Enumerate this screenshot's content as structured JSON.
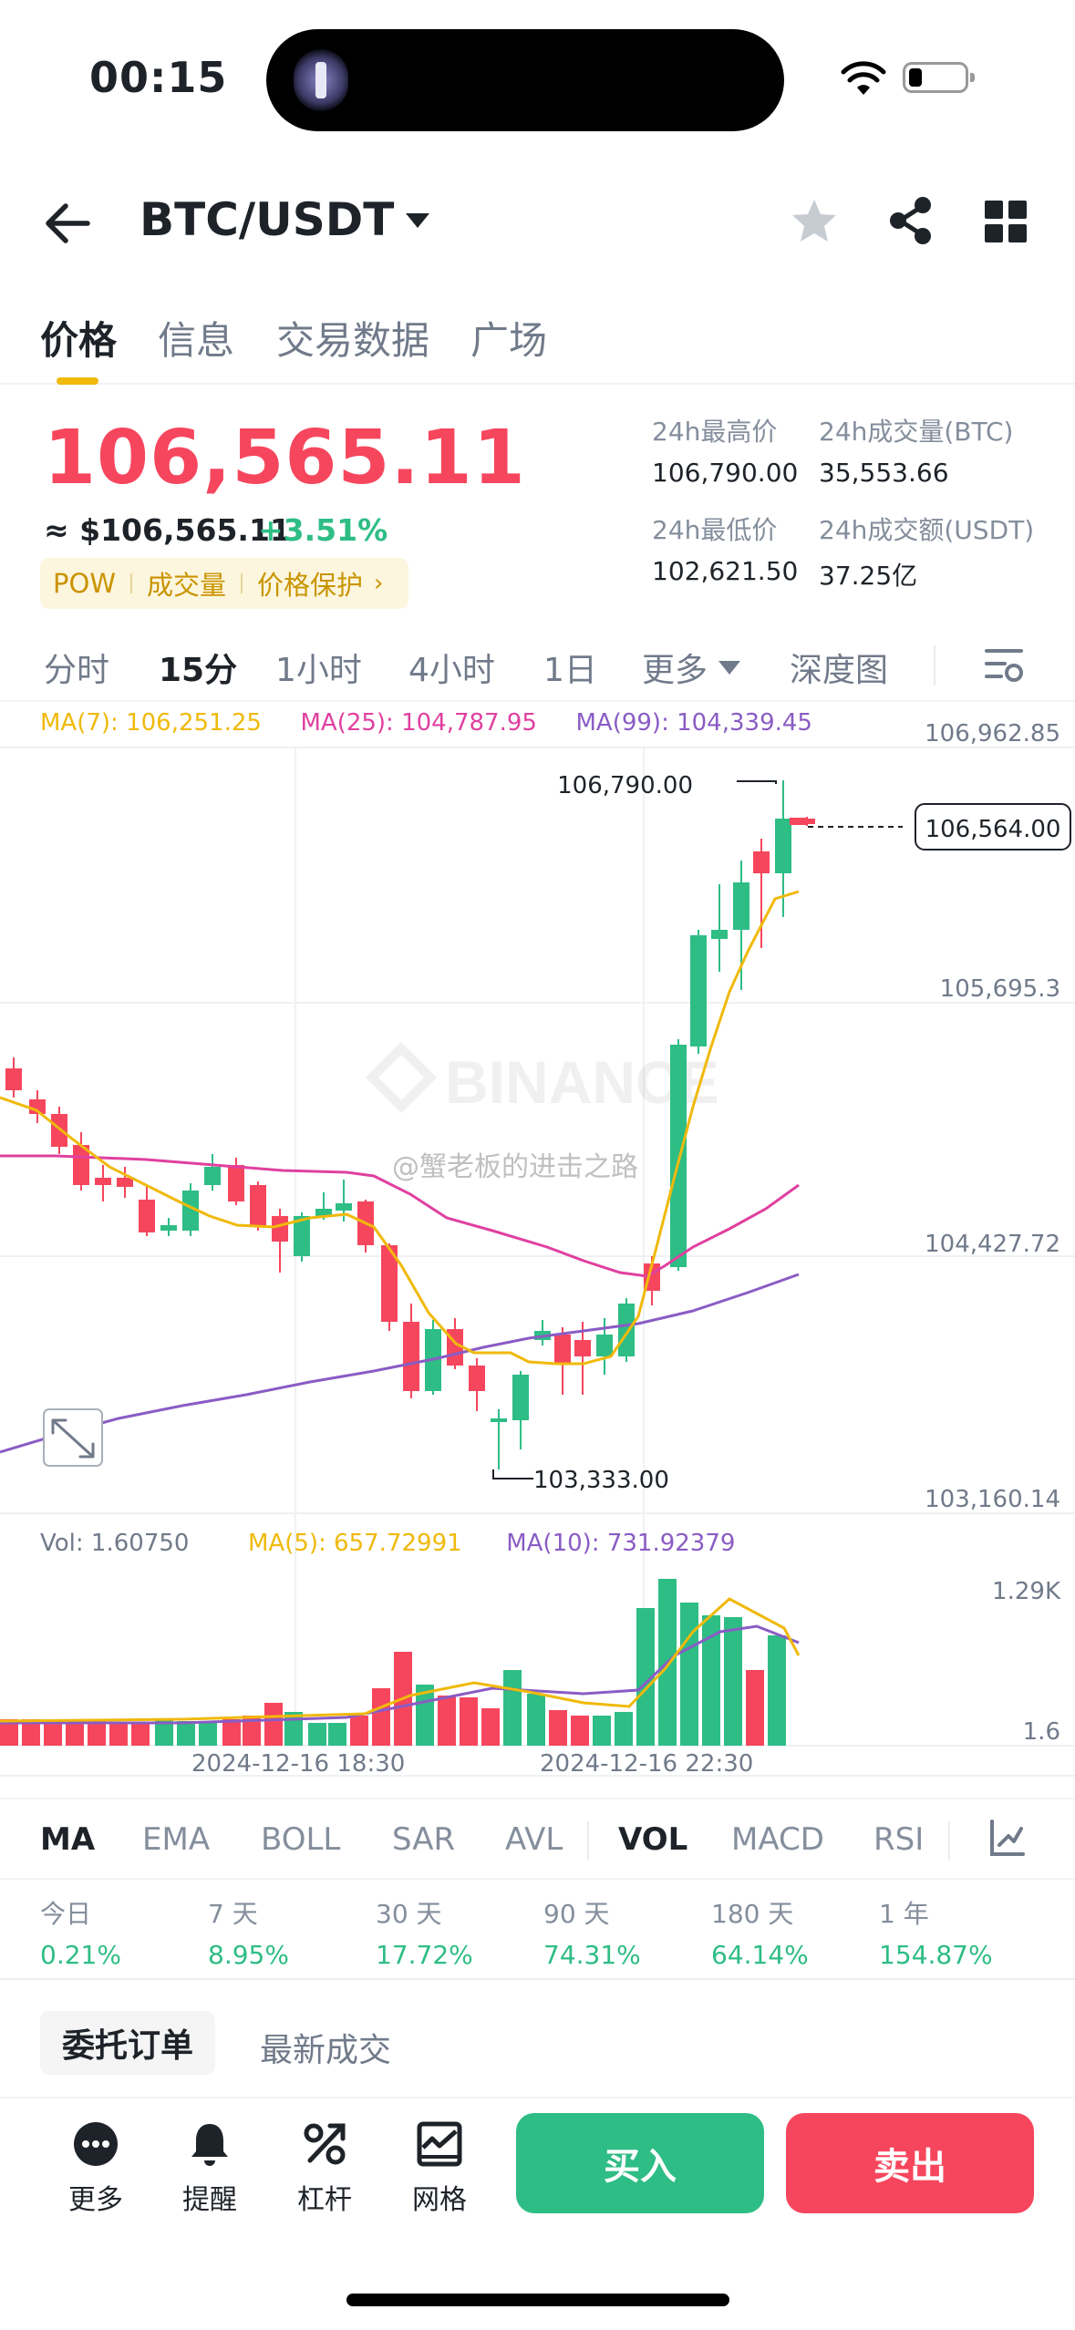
{
  "status": {
    "time": "00:15"
  },
  "header": {
    "pair": "BTC/USDT"
  },
  "tabs": [
    "价格",
    "信息",
    "交易数据",
    "广场"
  ],
  "price": {
    "last": "106,565.11",
    "fiat": "≈ $106,565.11",
    "change": "+3.51%",
    "tags": [
      "POW",
      "成交量",
      "价格保护"
    ]
  },
  "stats": {
    "high_label": "24h最高价",
    "high_value": "106,790.00",
    "vol_btc_label": "24h成交量(BTC)",
    "vol_btc_value": "35,553.66",
    "low_label": "24h最低价",
    "low_value": "102,621.50",
    "vol_usdt_label": "24h成交额(USDT)",
    "vol_usdt_value": "37.25亿"
  },
  "intervals": [
    "分时",
    "15分",
    "1小时",
    "4小时",
    "1日",
    "更多",
    "深度图"
  ],
  "chart": {
    "ma7": "MA(7): 106,251.25",
    "ma25": "MA(25): 104,787.95",
    "ma99": "MA(99): 104,339.45",
    "axis_top": "106,962.85",
    "axis_partial": "105,695.3",
    "axis_mid": "104,427.72",
    "axis_bottom": "103,160.14",
    "current_price_tag": "106,564.00",
    "high_marker": "106,790.00",
    "low_marker": "103,333.00",
    "watermark": "BINANCE",
    "weibo_watermark": "@蟹老板的进击之路",
    "vol": "Vol: 1.60750",
    "vol_ma5": "MA(5): 657.72991",
    "vol_ma10": "MA(10): 731.92379",
    "vol_axis_top": "1.29K",
    "vol_axis_bottom": "1.6",
    "time_labels": [
      "2024-12-16 18:30",
      "2024-12-16 22:30"
    ],
    "colors": {
      "up": "#2ebd85",
      "down": "#f6465d",
      "ma7": "#f0b90b",
      "ma25": "#e040a0",
      "ma99": "#8a5cc4"
    }
  },
  "indicators": [
    "MA",
    "EMA",
    "BOLL",
    "SAR",
    "AVL",
    "VOL",
    "MACD",
    "RSI"
  ],
  "performance": [
    {
      "label": "今日",
      "value": "0.21%"
    },
    {
      "label": "7 天",
      "value": "8.95%"
    },
    {
      "label": "30 天",
      "value": "17.72%"
    },
    {
      "label": "90 天",
      "value": "74.31%"
    },
    {
      "label": "180 天",
      "value": "64.14%"
    },
    {
      "label": "1 年",
      "value": "154.87%"
    }
  ],
  "orders": {
    "tab_active": "委托订单",
    "tab_other": "最新成交"
  },
  "bottom": {
    "actions": [
      "更多",
      "提醒",
      "杠杆",
      "网格"
    ],
    "buy": "买入",
    "sell": "卖出"
  }
}
